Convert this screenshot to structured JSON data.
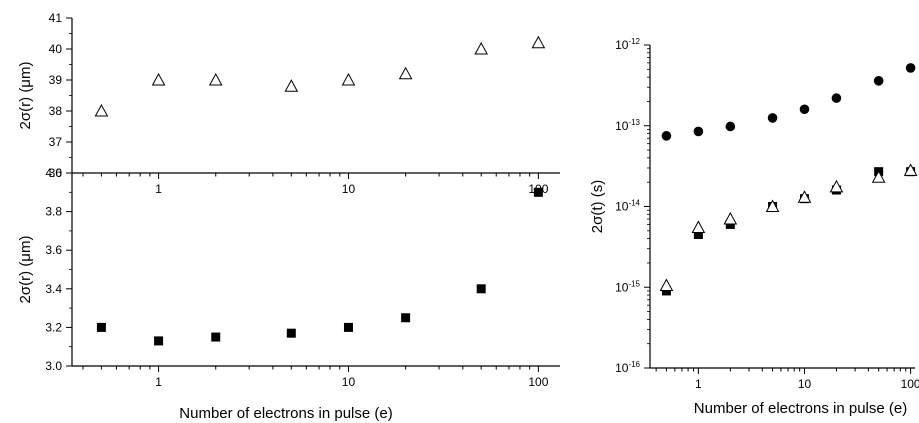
{
  "xlabel": "Number of electrons in pulse (e)",
  "chart_data": [
    {
      "type": "scatter",
      "xscale": "log",
      "xlim": [
        0.35,
        130
      ],
      "x_ticks": [
        "1",
        "10",
        "100"
      ],
      "ylabel": "2σ(r) (μm)",
      "ylim": [
        36,
        41
      ],
      "y_ticks": [
        "36",
        "37",
        "38",
        "39",
        "40",
        "41"
      ],
      "grid": false,
      "series": [
        {
          "marker": "open-triangle",
          "color": "#000000",
          "x": [
            0.5,
            1,
            2,
            5,
            10,
            20,
            50,
            100
          ],
          "y": [
            38.0,
            39.0,
            39.0,
            38.8,
            39.0,
            39.2,
            40.0,
            40.2
          ]
        }
      ]
    },
    {
      "type": "scatter",
      "xscale": "log",
      "xlim": [
        0.35,
        130
      ],
      "x_ticks": [
        "1",
        "10",
        "100"
      ],
      "xlabel": "Number of electrons in pulse (e)",
      "ylabel": "2σ(r) (μm)",
      "ylim": [
        3.0,
        4.0
      ],
      "y_ticks": [
        "3.0",
        "3.2",
        "3.4",
        "3.6",
        "3.8",
        "4.0"
      ],
      "grid": false,
      "series": [
        {
          "marker": "filled-square",
          "color": "#000000",
          "x": [
            0.5,
            1,
            2,
            5,
            10,
            20,
            50,
            100
          ],
          "y": [
            3.2,
            3.13,
            3.15,
            3.17,
            3.2,
            3.25,
            3.4,
            3.9
          ]
        }
      ]
    },
    {
      "type": "scatter",
      "xscale": "log",
      "yscale": "log",
      "xlim": [
        0.35,
        110
      ],
      "x_ticks": [
        "1",
        "10",
        "100"
      ],
      "xlabel": "Number of electrons in pulse (e)",
      "ylabel": "2σ(t) (s)",
      "ylim": [
        1e-16,
        1e-12
      ],
      "y_ticks": [
        {
          "base": "10",
          "exp": "-16"
        },
        {
          "base": "10",
          "exp": "-15"
        },
        {
          "base": "10",
          "exp": "-14"
        },
        {
          "base": "10",
          "exp": "-13"
        },
        {
          "base": "10",
          "exp": "-12"
        }
      ],
      "grid": false,
      "series": [
        {
          "marker": "filled-circle",
          "color": "#000000",
          "x": [
            0.5,
            1,
            2,
            5,
            10,
            20,
            50,
            100
          ],
          "y": [
            7.5e-14,
            8.5e-14,
            9.8e-14,
            1.25e-13,
            1.6e-13,
            2.2e-13,
            3.6e-13,
            5.2e-13
          ]
        },
        {
          "marker": "filled-square",
          "color": "#000000",
          "x": [
            0.5,
            1,
            2,
            5,
            10,
            20,
            50,
            100
          ],
          "y": [
            9e-16,
            4.5e-15,
            6e-15,
            1e-14,
            1.25e-14,
            1.6e-14,
            2.7e-14,
            2.7e-14
          ]
        },
        {
          "marker": "open-triangle",
          "color": "#000000",
          "x": [
            0.5,
            1,
            2,
            5,
            10,
            20,
            50,
            100
          ],
          "y": [
            1.05e-15,
            5.5e-15,
            7e-15,
            1e-14,
            1.3e-14,
            1.75e-14,
            2.3e-14,
            2.8e-14
          ]
        }
      ]
    }
  ]
}
